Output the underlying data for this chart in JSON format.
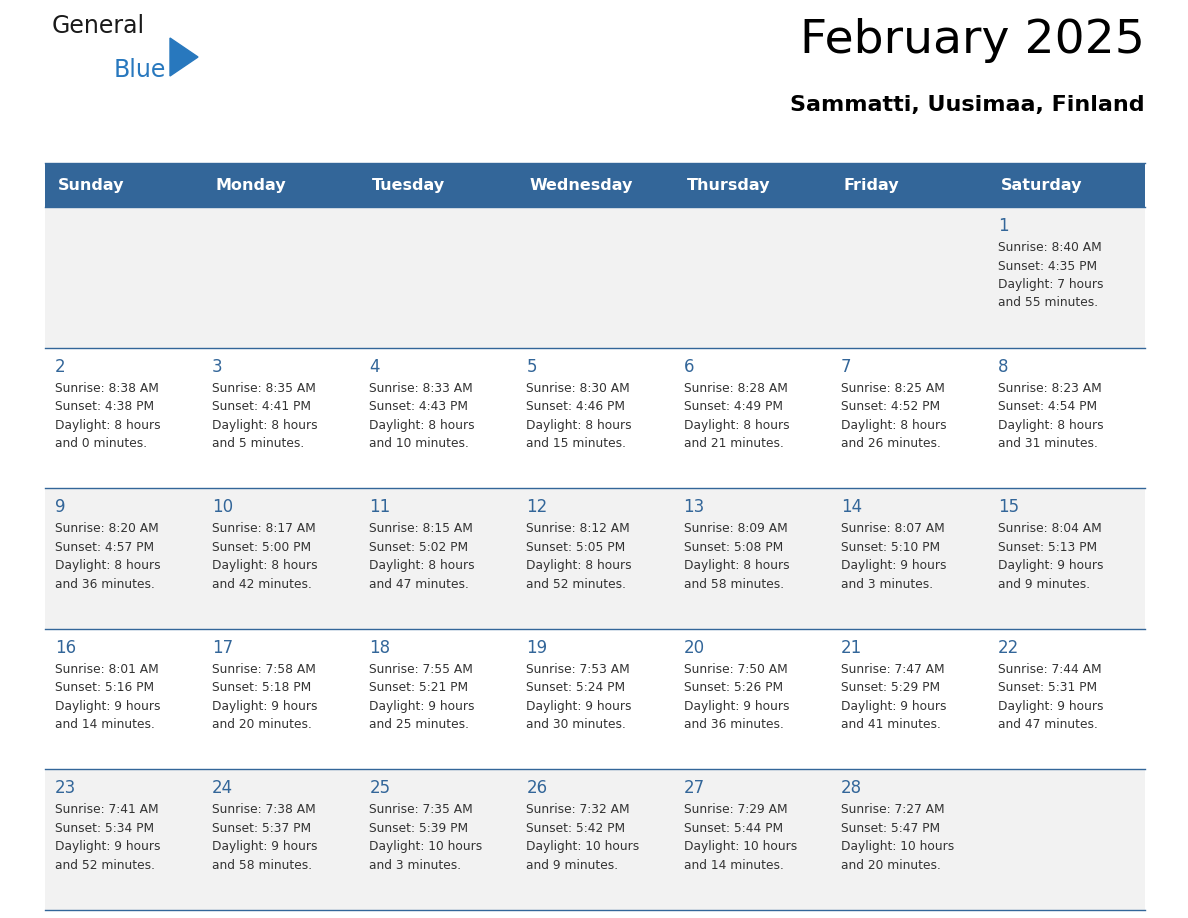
{
  "title": "February 2025",
  "subtitle": "Sammatti, Uusimaa, Finland",
  "days_of_week": [
    "Sunday",
    "Monday",
    "Tuesday",
    "Wednesday",
    "Thursday",
    "Friday",
    "Saturday"
  ],
  "header_bg": "#336699",
  "header_text": "#ffffff",
  "row_bg_even": "#f2f2f2",
  "row_bg_odd": "#ffffff",
  "day_number_color": "#336699",
  "text_color": "#333333",
  "line_color": "#336699",
  "calendar": [
    [
      null,
      null,
      null,
      null,
      null,
      null,
      {
        "day": 1,
        "sunrise": "8:40 AM",
        "sunset": "4:35 PM",
        "daylight": "7 hours\nand 55 minutes."
      }
    ],
    [
      {
        "day": 2,
        "sunrise": "8:38 AM",
        "sunset": "4:38 PM",
        "daylight": "8 hours\nand 0 minutes."
      },
      {
        "day": 3,
        "sunrise": "8:35 AM",
        "sunset": "4:41 PM",
        "daylight": "8 hours\nand 5 minutes."
      },
      {
        "day": 4,
        "sunrise": "8:33 AM",
        "sunset": "4:43 PM",
        "daylight": "8 hours\nand 10 minutes."
      },
      {
        "day": 5,
        "sunrise": "8:30 AM",
        "sunset": "4:46 PM",
        "daylight": "8 hours\nand 15 minutes."
      },
      {
        "day": 6,
        "sunrise": "8:28 AM",
        "sunset": "4:49 PM",
        "daylight": "8 hours\nand 21 minutes."
      },
      {
        "day": 7,
        "sunrise": "8:25 AM",
        "sunset": "4:52 PM",
        "daylight": "8 hours\nand 26 minutes."
      },
      {
        "day": 8,
        "sunrise": "8:23 AM",
        "sunset": "4:54 PM",
        "daylight": "8 hours\nand 31 minutes."
      }
    ],
    [
      {
        "day": 9,
        "sunrise": "8:20 AM",
        "sunset": "4:57 PM",
        "daylight": "8 hours\nand 36 minutes."
      },
      {
        "day": 10,
        "sunrise": "8:17 AM",
        "sunset": "5:00 PM",
        "daylight": "8 hours\nand 42 minutes."
      },
      {
        "day": 11,
        "sunrise": "8:15 AM",
        "sunset": "5:02 PM",
        "daylight": "8 hours\nand 47 minutes."
      },
      {
        "day": 12,
        "sunrise": "8:12 AM",
        "sunset": "5:05 PM",
        "daylight": "8 hours\nand 52 minutes."
      },
      {
        "day": 13,
        "sunrise": "8:09 AM",
        "sunset": "5:08 PM",
        "daylight": "8 hours\nand 58 minutes."
      },
      {
        "day": 14,
        "sunrise": "8:07 AM",
        "sunset": "5:10 PM",
        "daylight": "9 hours\nand 3 minutes."
      },
      {
        "day": 15,
        "sunrise": "8:04 AM",
        "sunset": "5:13 PM",
        "daylight": "9 hours\nand 9 minutes."
      }
    ],
    [
      {
        "day": 16,
        "sunrise": "8:01 AM",
        "sunset": "5:16 PM",
        "daylight": "9 hours\nand 14 minutes."
      },
      {
        "day": 17,
        "sunrise": "7:58 AM",
        "sunset": "5:18 PM",
        "daylight": "9 hours\nand 20 minutes."
      },
      {
        "day": 18,
        "sunrise": "7:55 AM",
        "sunset": "5:21 PM",
        "daylight": "9 hours\nand 25 minutes."
      },
      {
        "day": 19,
        "sunrise": "7:53 AM",
        "sunset": "5:24 PM",
        "daylight": "9 hours\nand 30 minutes."
      },
      {
        "day": 20,
        "sunrise": "7:50 AM",
        "sunset": "5:26 PM",
        "daylight": "9 hours\nand 36 minutes."
      },
      {
        "day": 21,
        "sunrise": "7:47 AM",
        "sunset": "5:29 PM",
        "daylight": "9 hours\nand 41 minutes."
      },
      {
        "day": 22,
        "sunrise": "7:44 AM",
        "sunset": "5:31 PM",
        "daylight": "9 hours\nand 47 minutes."
      }
    ],
    [
      {
        "day": 23,
        "sunrise": "7:41 AM",
        "sunset": "5:34 PM",
        "daylight": "9 hours\nand 52 minutes."
      },
      {
        "day": 24,
        "sunrise": "7:38 AM",
        "sunset": "5:37 PM",
        "daylight": "9 hours\nand 58 minutes."
      },
      {
        "day": 25,
        "sunrise": "7:35 AM",
        "sunset": "5:39 PM",
        "daylight": "10 hours\nand 3 minutes."
      },
      {
        "day": 26,
        "sunrise": "7:32 AM",
        "sunset": "5:42 PM",
        "daylight": "10 hours\nand 9 minutes."
      },
      {
        "day": 27,
        "sunrise": "7:29 AM",
        "sunset": "5:44 PM",
        "daylight": "10 hours\nand 14 minutes."
      },
      {
        "day": 28,
        "sunrise": "7:27 AM",
        "sunset": "5:47 PM",
        "daylight": "10 hours\nand 20 minutes."
      },
      null
    ]
  ],
  "logo_general_color": "#1a1a1a",
  "logo_blue_color": "#2878be",
  "figsize": [
    11.88,
    9.18
  ],
  "dpi": 100
}
